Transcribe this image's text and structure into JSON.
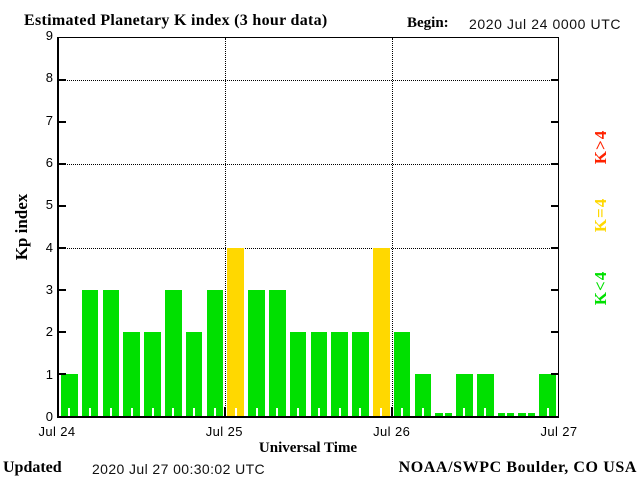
{
  "header": {
    "title": "Estimated Planetary K index (3 hour data)",
    "begin_label": "Begin:",
    "begin_value": "2020 Jul 24 0000 UTC"
  },
  "y_axis": {
    "title": "Kp index",
    "tick_labels": [
      "0",
      "1",
      "2",
      "3",
      "4",
      "5",
      "6",
      "7",
      "8",
      "9"
    ]
  },
  "x_axis": {
    "title": "Universal Time",
    "tick_labels": [
      "Jul 24",
      "Jul 25",
      "Jul 26",
      "Jul 27"
    ]
  },
  "legend": {
    "items": [
      {
        "label": "K>4",
        "color": "#ff2200"
      },
      {
        "label": "K=4",
        "color": "#ffd800"
      },
      {
        "label": "K<4",
        "color": "#00e000"
      }
    ]
  },
  "footer": {
    "updated_label": "Updated",
    "updated_value": "2020 Jul 27 00:30:02 UTC",
    "credit": "NOAA/SWPC Boulder, CO USA"
  },
  "colors": {
    "green": "#00e000",
    "yellow": "#ffd800",
    "red": "#ff2200",
    "axis": "#000000",
    "background": "#ffffff"
  },
  "chart_data": {
    "type": "bar",
    "title": "Estimated Planetary K index (3 hour data)",
    "xlabel": "Universal Time",
    "ylabel": "Kp index",
    "ylim": [
      0,
      9
    ],
    "begin": "2020 Jul 24 0000 UTC",
    "interval_hours": 3,
    "x_tick_labels": [
      "Jul 24",
      "Jul 25",
      "Jul 26",
      "Jul 27"
    ],
    "values": [
      1,
      3,
      3,
      2,
      2,
      3,
      2,
      3,
      4,
      3,
      3,
      2,
      2,
      2,
      2,
      4,
      2,
      1,
      0,
      1,
      1,
      0,
      0,
      1
    ],
    "color_rule": {
      "below_4": "green",
      "equal_4": "yellow",
      "above_4": "red"
    },
    "h_gridlines_at": [
      4,
      6,
      8
    ],
    "v_gridlines_at_day": [
      1,
      2
    ],
    "grid_style": "dotted",
    "legend_position": "right",
    "legend_entries": [
      "K>4",
      "K=4",
      "K<4"
    ]
  }
}
